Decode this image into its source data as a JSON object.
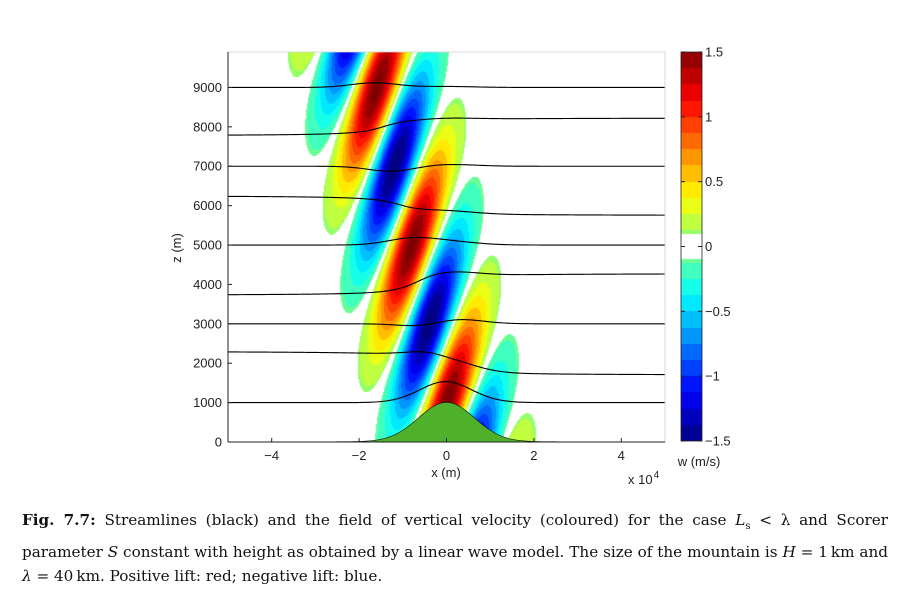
{
  "chart_data": {
    "type": "heatmap",
    "title": "",
    "xlabel": "x (m)",
    "ylabel": "z (m)",
    "x_multiplier_label": "x 10",
    "x_multiplier_exp": "4",
    "xlim": [
      -50000,
      50000
    ],
    "ylim": [
      0,
      9900
    ],
    "x_ticks": [
      -40000,
      -20000,
      0,
      20000,
      40000
    ],
    "x_tick_labels": [
      "−4",
      "−2",
      "0",
      "2",
      "4"
    ],
    "y_ticks": [
      0,
      1000,
      2000,
      3000,
      4000,
      5000,
      6000,
      7000,
      8000,
      9000
    ],
    "y_tick_labels": [
      "0",
      "1000",
      "2000",
      "3000",
      "4000",
      "5000",
      "6000",
      "7000",
      "8000",
      "9000"
    ],
    "field": "vertical velocity w (m/s)",
    "mountain": {
      "height_m": 1000,
      "half_width_m": 9000,
      "color": "#4fb12b"
    },
    "streamline_base_heights_m": [
      0,
      1000,
      2000,
      3000,
      4000,
      5000,
      6000,
      7000,
      8000,
      9000
    ],
    "colorbar": {
      "label": "w (m/s)",
      "range": [
        -1.5,
        1.5
      ],
      "ticks": [
        1.5,
        1,
        0.5,
        0,
        -0.5,
        -1,
        -1.5
      ],
      "tick_labels": [
        "1.5",
        "1",
        "0.5",
        "0",
        "−0.5",
        "−1",
        "−1.5"
      ],
      "white_band": [
        -0.1,
        0.1
      ]
    },
    "grid": false
  },
  "caption": {
    "fig_label": "Fig. 7.7:",
    "text_1": " Streamlines (black) and the field of vertical velocity (coloured) for the case ",
    "L_symbol": "L",
    "L_sub": "s",
    "lt_lambda": " < λ",
    "text_2": " and Scorer parameter ",
    "S_symbol": "S",
    "text_3": " constant with height as obtained by a linear wave model. The size of the mountain is ",
    "H_symbol": "H",
    "text_4": " = 1 km and ",
    "lambda_symbol": "λ",
    "text_5": " = 40 km. Positive lift: red; negative lift: blue."
  }
}
